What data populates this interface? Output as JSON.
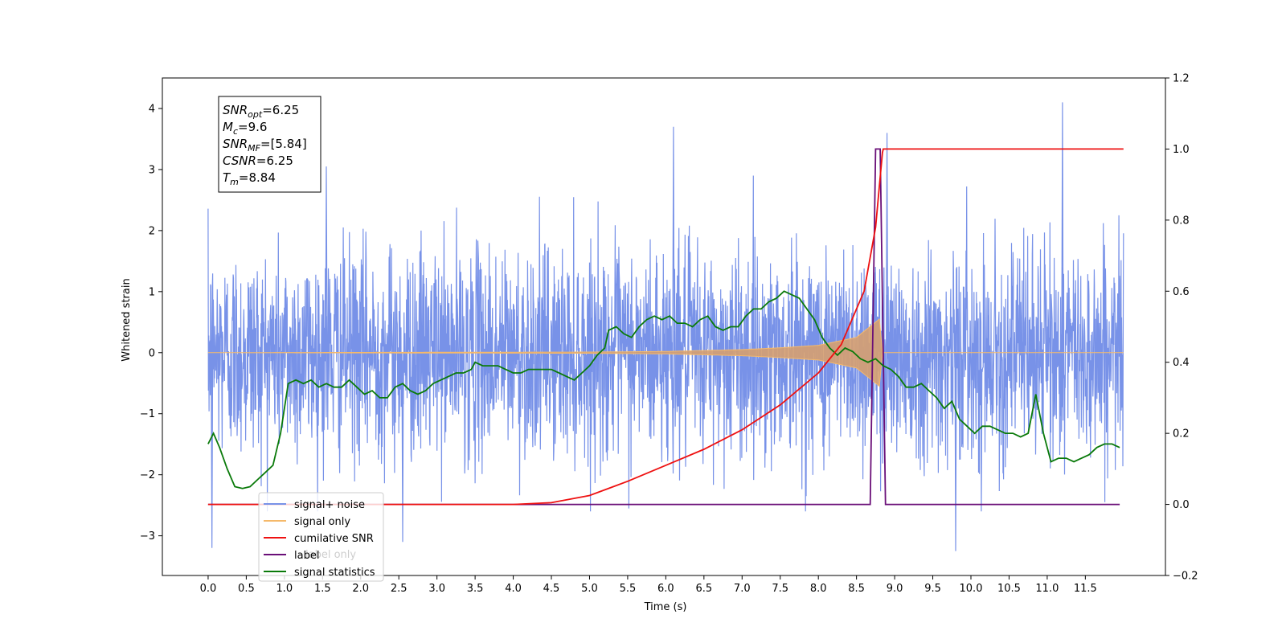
{
  "chart_data": {
    "type": "line",
    "xlabel": "Time (s)",
    "ylabel": "Whitened strain",
    "xlim": [
      -0.6,
      12.55
    ],
    "ylim": [
      -3.65,
      4.5
    ],
    "y2lim": [
      -0.2,
      1.2
    ],
    "x_ticks": [
      "0.0",
      "0.5",
      "1.0",
      "1.5",
      "2.0",
      "2.5",
      "3.0",
      "3.5",
      "4.0",
      "4.5",
      "5.0",
      "5.5",
      "6.0",
      "6.5",
      "7.0",
      "7.5",
      "8.0",
      "8.5",
      "9.0",
      "9.5",
      "10.0",
      "10.5",
      "11.0",
      "11.5"
    ],
    "y_ticks": [
      "−3",
      "−2",
      "−1",
      "0",
      "1",
      "2",
      "3",
      "4"
    ],
    "y2_ticks": [
      "−0.2",
      "0.0",
      "0.2",
      "0.4",
      "0.6",
      "0.8",
      "1.0",
      "1.2"
    ],
    "stats_box": [
      {
        "base": "SNR",
        "sub": "opt",
        "value": "=6.25"
      },
      {
        "base": "M",
        "sub": "c",
        "value": "=9.6"
      },
      {
        "base": "SNR",
        "sub": "MF",
        "value": "=[5.84]"
      },
      {
        "base": "CSNR",
        "sub": "",
        "value": "=6.25"
      },
      {
        "base": "T",
        "sub": "m",
        "value": "=8.84"
      }
    ],
    "legend": [
      {
        "label": "signal+ noise",
        "color": "#7892e8"
      },
      {
        "label": "signal only",
        "color": "#f5b96a"
      },
      {
        "label": "cumilative SNR",
        "color": "#ee1111"
      },
      {
        "label": "label",
        "color": "#6a0f78"
      },
      {
        "label": "signal statistics",
        "color": "#0a7a0a"
      }
    ],
    "hidden_legend_text": "label only",
    "series": [
      {
        "name": "signal+ noise",
        "axis": "left",
        "description_values": {
          "x_start": 0.0,
          "x_end": 12.0,
          "typical_range": [
            -2.0,
            2.5
          ],
          "peaks": [
            [
              1.55,
              3.05
            ],
            [
              6.1,
              3.7
            ],
            [
              8.9,
              3.6
            ],
            [
              11.2,
              4.1
            ],
            [
              0.05,
              -3.2
            ],
            [
              9.8,
              -3.25
            ],
            [
              2.55,
              -3.1
            ]
          ]
        }
      },
      {
        "name": "signal only",
        "axis": "left",
        "envelope": [
          [
            0.0,
            0.0
          ],
          [
            5.0,
            0.01
          ],
          [
            6.0,
            0.02
          ],
          [
            7.0,
            0.05
          ],
          [
            7.5,
            0.08
          ],
          [
            8.0,
            0.12
          ],
          [
            8.5,
            0.25
          ],
          [
            8.8,
            0.55
          ],
          [
            8.84,
            0.0
          ],
          [
            12.0,
            0.0
          ]
        ]
      },
      {
        "name": "cumilative SNR",
        "axis": "right",
        "x": [
          0.0,
          4.0,
          4.5,
          5.0,
          5.5,
          6.0,
          6.5,
          7.0,
          7.5,
          8.0,
          8.3,
          8.6,
          8.75,
          8.84,
          8.85,
          12.0
        ],
        "y": [
          0.0,
          0.0,
          0.005,
          0.025,
          0.065,
          0.11,
          0.155,
          0.21,
          0.28,
          0.37,
          0.45,
          0.6,
          0.78,
          0.99,
          1.0,
          1.0
        ]
      },
      {
        "name": "label",
        "axis": "right",
        "x": [
          0.0,
          8.68,
          8.75,
          8.81,
          8.88,
          11.95
        ],
        "y": [
          0.0,
          0.0,
          1.0,
          1.0,
          0.0,
          0.0
        ]
      },
      {
        "name": "signal statistics",
        "axis": "right",
        "x": [
          0.0,
          0.07,
          0.15,
          0.25,
          0.35,
          0.45,
          0.55,
          0.65,
          0.75,
          0.85,
          0.95,
          1.05,
          1.15,
          1.25,
          1.35,
          1.45,
          1.55,
          1.65,
          1.75,
          1.85,
          1.95,
          2.05,
          2.15,
          2.25,
          2.35,
          2.45,
          2.55,
          2.65,
          2.75,
          2.85,
          2.95,
          3.05,
          3.15,
          3.25,
          3.35,
          3.45,
          3.5,
          3.6,
          3.7,
          3.8,
          3.9,
          4.0,
          4.1,
          4.2,
          4.3,
          4.4,
          4.5,
          4.6,
          4.7,
          4.8,
          4.9,
          5.0,
          5.1,
          5.2,
          5.25,
          5.35,
          5.45,
          5.55,
          5.65,
          5.75,
          5.85,
          5.95,
          6.05,
          6.15,
          6.25,
          6.35,
          6.45,
          6.55,
          6.65,
          6.75,
          6.85,
          6.95,
          7.05,
          7.15,
          7.25,
          7.35,
          7.45,
          7.55,
          7.65,
          7.75,
          7.85,
          7.95,
          8.05,
          8.15,
          8.25,
          8.35,
          8.45,
          8.55,
          8.65,
          8.75,
          8.85,
          8.95,
          9.05,
          9.15,
          9.25,
          9.35,
          9.45,
          9.55,
          9.65,
          9.75,
          9.85,
          9.95,
          10.05,
          10.15,
          10.25,
          10.35,
          10.45,
          10.55,
          10.65,
          10.75,
          10.85,
          10.95,
          11.05,
          11.15,
          11.25,
          11.35,
          11.45,
          11.55,
          11.65,
          11.75,
          11.85,
          11.95
        ],
        "y": [
          0.17,
          0.2,
          0.16,
          0.1,
          0.05,
          0.045,
          0.05,
          0.07,
          0.09,
          0.11,
          0.2,
          0.34,
          0.35,
          0.34,
          0.35,
          0.33,
          0.34,
          0.33,
          0.33,
          0.35,
          0.33,
          0.31,
          0.32,
          0.3,
          0.3,
          0.33,
          0.34,
          0.32,
          0.31,
          0.32,
          0.34,
          0.35,
          0.36,
          0.37,
          0.37,
          0.38,
          0.4,
          0.39,
          0.39,
          0.39,
          0.38,
          0.37,
          0.37,
          0.38,
          0.38,
          0.38,
          0.38,
          0.37,
          0.36,
          0.35,
          0.37,
          0.39,
          0.42,
          0.44,
          0.49,
          0.5,
          0.48,
          0.47,
          0.5,
          0.52,
          0.53,
          0.52,
          0.53,
          0.51,
          0.51,
          0.5,
          0.52,
          0.53,
          0.5,
          0.49,
          0.5,
          0.5,
          0.53,
          0.55,
          0.55,
          0.57,
          0.58,
          0.6,
          0.59,
          0.58,
          0.55,
          0.52,
          0.47,
          0.44,
          0.42,
          0.44,
          0.43,
          0.41,
          0.4,
          0.41,
          0.39,
          0.38,
          0.36,
          0.33,
          0.33,
          0.34,
          0.32,
          0.3,
          0.27,
          0.29,
          0.24,
          0.22,
          0.2,
          0.22,
          0.22,
          0.21,
          0.2,
          0.2,
          0.19,
          0.2,
          0.31,
          0.2,
          0.12,
          0.13,
          0.13,
          0.12,
          0.13,
          0.14,
          0.16,
          0.17,
          0.17,
          0.16
        ]
      }
    ]
  }
}
